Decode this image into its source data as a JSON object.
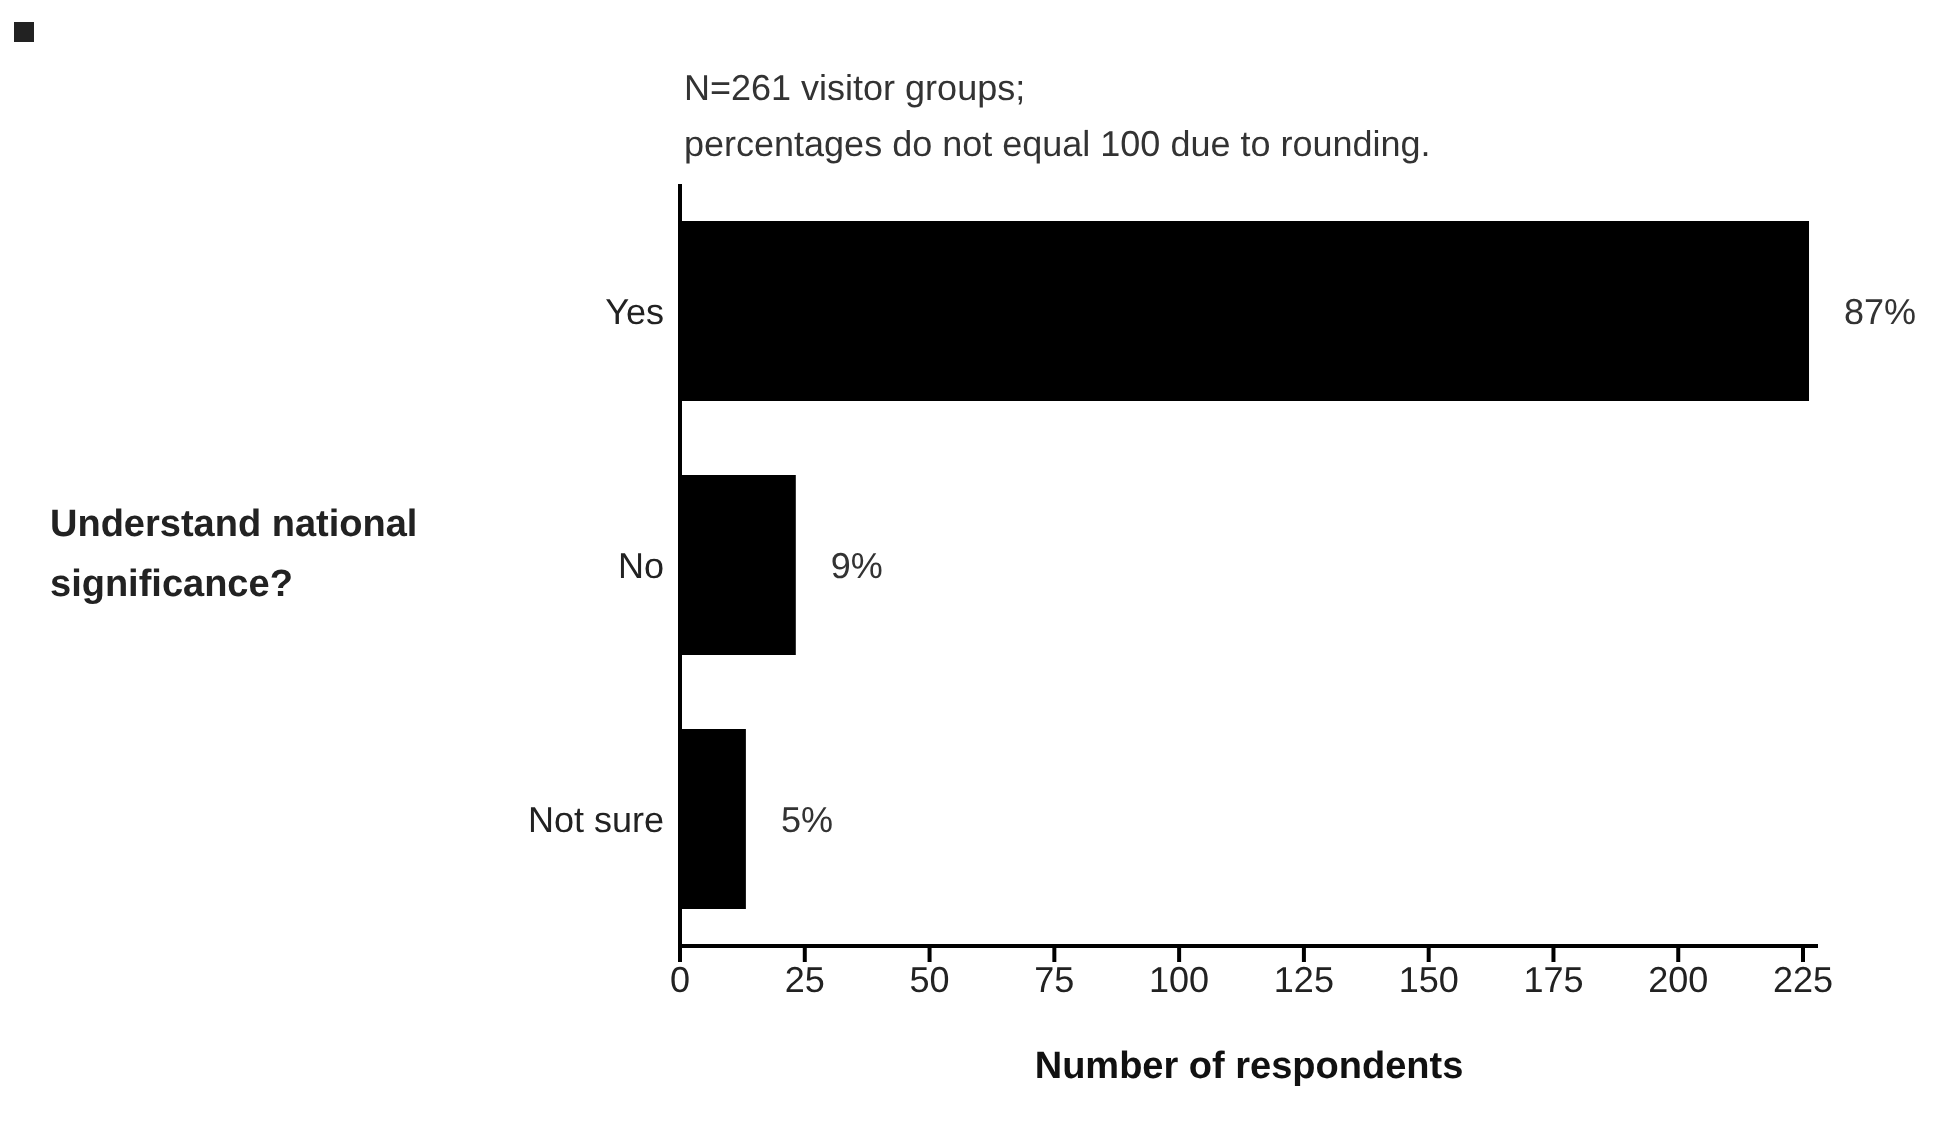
{
  "chart_data": {
    "type": "bar",
    "orientation": "horizontal",
    "xlabel": "Number of respondents",
    "ylabel": "Understand national significance?",
    "annotations": [
      "N=261 visitor groups;",
      "percentages do not equal 100 due to rounding.",
      {
        "text": "87%",
        "x": 226,
        "y": "Yes"
      },
      {
        "text": "9%",
        "x": 23,
        "y": "No"
      },
      {
        "text": "5%",
        "x": 13,
        "y": "Not sure"
      }
    ],
    "categories": [
      "Yes",
      "No",
      "Not sure"
    ],
    "values": [
      226,
      23,
      13
    ],
    "color": "#000000",
    "xlim": [
      0,
      228
    ],
    "xticks": [
      0,
      25,
      50,
      75,
      100,
      125,
      150,
      175,
      200,
      225
    ],
    "grid": false,
    "legend": false
  }
}
